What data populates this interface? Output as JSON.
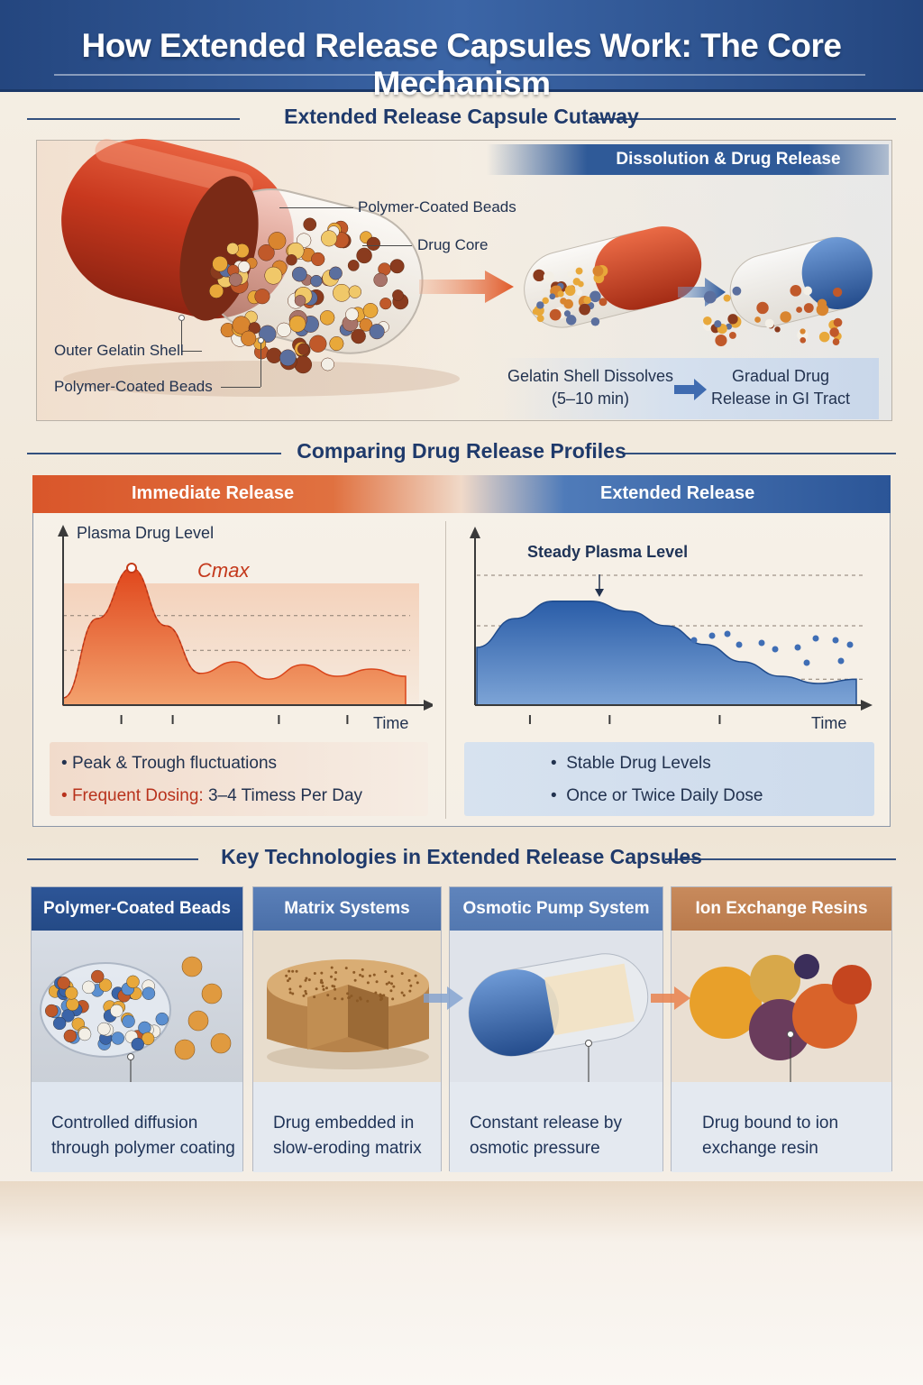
{
  "header": {
    "title": "How Extended Release Capsules Work: The Core Mechanism"
  },
  "sections": {
    "cutaway": "Extended Release Capsule Cutaway",
    "profiles": "Comparing Drug Release Profiles",
    "technologies": "Key Technologies in Extended Release Capsules"
  },
  "cutaway": {
    "labels": {
      "beads_top": "Polymer-Coated Beads",
      "drug_core": "Drug Core",
      "outer_shell": "Outer Gelatin Shell",
      "beads_bottom": "Polymer-Coated Beads"
    },
    "dissolution_banner": "Dissolution & Drug Release",
    "step1_line1": "Gelatin Shell Dissolves",
    "step1_line2": "(5–10 min)",
    "step2_line1": "Gradual Drug",
    "step2_line2": "Release in GI Tract"
  },
  "profiles": {
    "immediate": {
      "heading": "Immediate Release",
      "ylabel": "Plasma Drug Level",
      "peak_label": "Cmax",
      "xlabel": "Time",
      "bullet1": "Peak & Trough fluctuations",
      "bullet2_em": "Frequent Dosing:",
      "bullet2_rest": " 3–4 Timess Per Day"
    },
    "extended": {
      "heading": "Extended Release",
      "annotation": "Steady Plasma Level",
      "xlabel": "Time",
      "bullet1": "Stable Drug Levels",
      "bullet2": "Once or Twice Daily Dose"
    }
  },
  "technologies": [
    {
      "title": "Polymer-Coated Beads",
      "line1": "Controlled diffusion",
      "line2": "through polymer coating"
    },
    {
      "title": "Matrix Systems",
      "line1": "Drug embedded in",
      "line2": "slow-eroding matrix"
    },
    {
      "title": "Osmotic Pump System",
      "line1": "Constant release by",
      "line2": "osmotic pressure"
    },
    {
      "title": "Ion Exchange Resins",
      "line1": "Drug bound to ion",
      "line2": "exchange resin"
    }
  ],
  "colors": {
    "navy": "#24467f",
    "orange": "#d9562a",
    "blue": "#2b5597",
    "tan": "#c88a5c",
    "capsule_red": "#c8381e"
  },
  "chart_data": [
    {
      "type": "area",
      "title": "Immediate Release",
      "ylabel": "Plasma Drug Level",
      "xlabel": "Time",
      "x": [
        0,
        1,
        2,
        3,
        4,
        5,
        6,
        7,
        8,
        9,
        10
      ],
      "y": [
        0.05,
        0.6,
        0.95,
        0.55,
        0.22,
        0.3,
        0.18,
        0.28,
        0.2,
        0.25,
        0.2
      ],
      "annotations": [
        "Cmax"
      ]
    },
    {
      "type": "area",
      "title": "Extended Release",
      "xlabel": "Time",
      "x": [
        0,
        1,
        2,
        3,
        4,
        5,
        6,
        7,
        8,
        9,
        10
      ],
      "y": [
        0.4,
        0.6,
        0.72,
        0.72,
        0.65,
        0.55,
        0.42,
        0.3,
        0.2,
        0.15,
        0.18
      ],
      "annotations": [
        "Steady Plasma Level"
      ]
    }
  ]
}
